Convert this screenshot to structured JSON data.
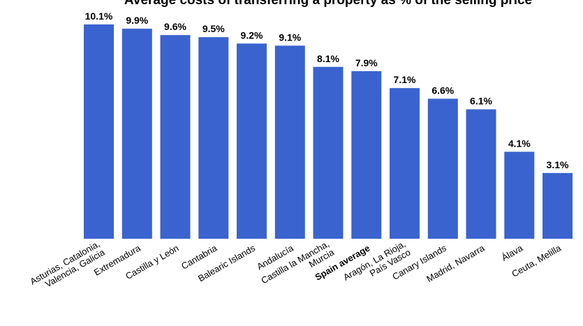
{
  "chart_data": {
    "type": "bar",
    "title": "Average costs of transferring a property as % of the selling price",
    "xlabel": "",
    "ylabel": "",
    "ylim": [
      0,
      11
    ],
    "grid": false,
    "legend": "none",
    "bar_color": "#3a63cf",
    "categories": [
      "Asturias, Catalonia, Valencia, Galicia",
      "Extremadura",
      "Castilla y León",
      "Cantabria",
      "Balearic Islands",
      "Andalucía",
      "Castilla la Mancha, Murcia",
      "Spain average",
      "Aragón, La Rioja, País Vasco",
      "Canary Islands",
      "Madrid, Navarra",
      "Álava",
      "Ceuta, Melilla"
    ],
    "values": [
      10.1,
      9.9,
      9.6,
      9.5,
      9.2,
      9.1,
      8.1,
      7.9,
      7.1,
      6.6,
      6.1,
      4.1,
      3.1
    ],
    "value_labels": [
      "10.1%",
      "9.9%",
      "9.6%",
      "9.5%",
      "9.2%",
      "9.1%",
      "8.1%",
      "7.9%",
      "7.1%",
      "6.6%",
      "6.1%",
      "4.1%",
      "3.1%"
    ],
    "highlight_category": "Spain average"
  }
}
